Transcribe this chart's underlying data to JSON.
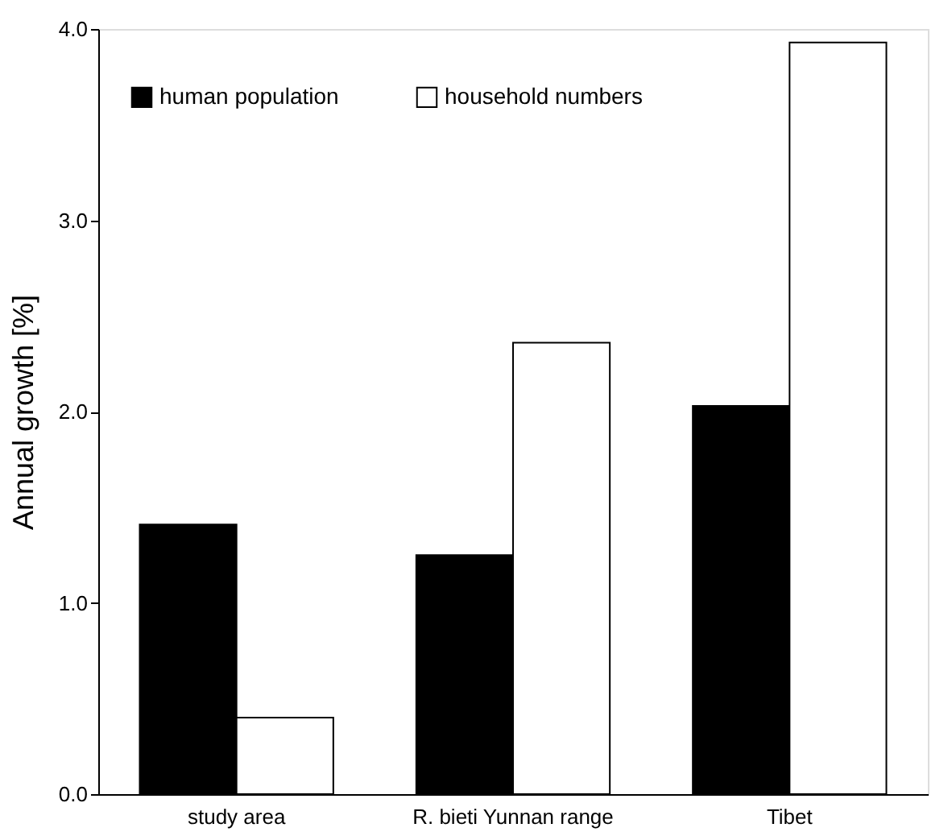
{
  "chart_data": {
    "type": "bar",
    "ylabel": "Annual growth [%]",
    "categories": [
      "study area",
      "R. bieti Yunnan range",
      "Tibet"
    ],
    "series": [
      {
        "name": "human population",
        "color": "#000000",
        "values": [
          1.41,
          1.25,
          2.03
        ]
      },
      {
        "name": "household numbers",
        "color": "#ffffff",
        "values": [
          0.4,
          2.36,
          3.93
        ]
      }
    ],
    "ylim": [
      0,
      4
    ],
    "yticks": [
      {
        "value": 0,
        "label": "0.0"
      },
      {
        "value": 1,
        "label": "1.0"
      },
      {
        "value": 2,
        "label": "2.0"
      },
      {
        "value": 3,
        "label": "3.0"
      },
      {
        "value": 4,
        "label": "4.0"
      }
    ],
    "grid": false,
    "legend": "top left"
  }
}
